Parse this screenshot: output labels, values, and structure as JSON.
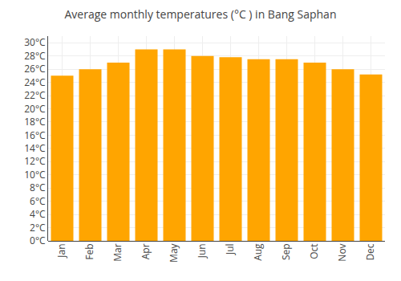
{
  "chart_data": {
    "type": "bar",
    "title": "Average monthly temperatures (°C ) in Bang Saphan",
    "categories": [
      "Jan",
      "Feb",
      "Mar",
      "Apr",
      "May",
      "Jun",
      "Jul",
      "Aug",
      "Sep",
      "Oct",
      "Nov",
      "Dec"
    ],
    "values": [
      25.0,
      26.0,
      27.0,
      29.0,
      29.0,
      28.0,
      27.8,
      27.5,
      27.5,
      27.0,
      26.0,
      25.2
    ],
    "color": "#FFA500",
    "ylim": [
      0,
      31
    ],
    "yticks": [
      {
        "value": 0,
        "label": "0°C"
      },
      {
        "value": 2,
        "label": "2°C"
      },
      {
        "value": 4,
        "label": "4°C"
      },
      {
        "value": 6,
        "label": "6°C"
      },
      {
        "value": 8,
        "label": "8°C"
      },
      {
        "value": 10,
        "label": "10°C"
      },
      {
        "value": 12,
        "label": "12°C"
      },
      {
        "value": 14,
        "label": "14°C"
      },
      {
        "value": 16,
        "label": "16°C"
      },
      {
        "value": 18,
        "label": "18°C"
      },
      {
        "value": 20,
        "label": "20°C"
      },
      {
        "value": 22,
        "label": "22°C"
      },
      {
        "value": 24,
        "label": "24°C"
      },
      {
        "value": 26,
        "label": "26°C"
      },
      {
        "value": 28,
        "label": "28°C"
      },
      {
        "value": 30,
        "label": "30°C"
      }
    ],
    "grid": true
  }
}
